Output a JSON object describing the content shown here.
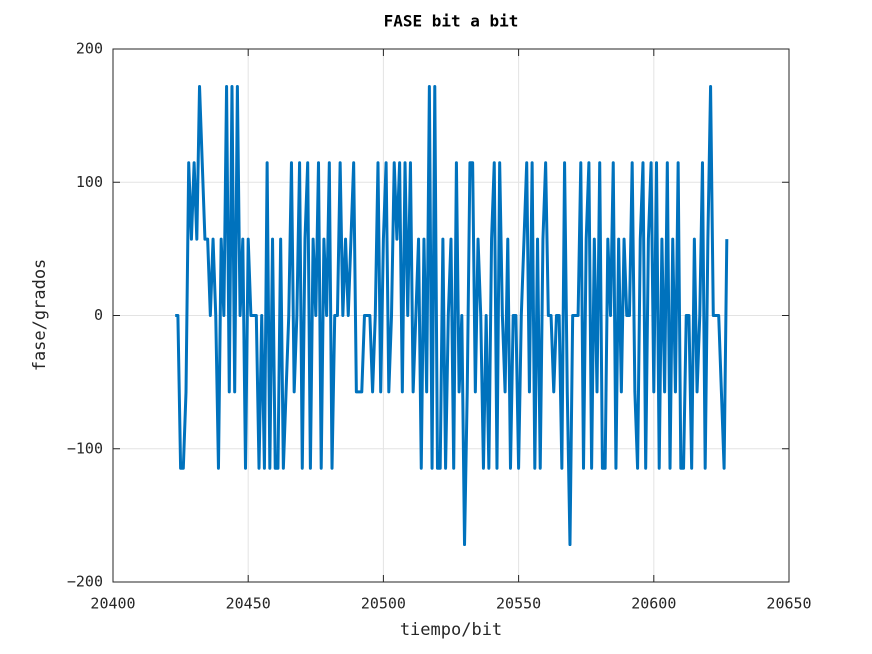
{
  "chart_data": {
    "type": "line",
    "title": "FASE bit a bit",
    "xlabel": "tiempo/bit",
    "ylabel": "fase/grados",
    "x": [
      20423,
      20424,
      20425,
      20426,
      20427,
      20428,
      20429,
      20430,
      20431,
      20432,
      20433,
      20434,
      20435,
      20436,
      20437,
      20438,
      20439,
      20440,
      20441,
      20442,
      20443,
      20444,
      20445,
      20446,
      20447,
      20448,
      20449,
      20450,
      20451,
      20452,
      20453,
      20454,
      20455,
      20456,
      20457,
      20458,
      20459,
      20460,
      20461,
      20462,
      20463,
      20464,
      20465,
      20466,
      20467,
      20468,
      20469,
      20470,
      20471,
      20472,
      20473,
      20474,
      20475,
      20476,
      20477,
      20478,
      20479,
      20480,
      20481,
      20482,
      20483,
      20484,
      20485,
      20486,
      20487,
      20488,
      20489,
      20490,
      20491,
      20492,
      20493,
      20494,
      20495,
      20496,
      20497,
      20498,
      20499,
      20500,
      20501,
      20502,
      20503,
      20504,
      20505,
      20506,
      20507,
      20508,
      20509,
      20510,
      20511,
      20512,
      20513,
      20514,
      20515,
      20516,
      20517,
      20518,
      20519,
      20520,
      20521,
      20522,
      20523,
      20524,
      20525,
      20526,
      20527,
      20528,
      20529,
      20530,
      20531,
      20532,
      20533,
      20534,
      20535,
      20536,
      20537,
      20538,
      20539,
      20540,
      20541,
      20542,
      20543,
      20544,
      20545,
      20546,
      20547,
      20548,
      20549,
      20550,
      20551,
      20552,
      20553,
      20554,
      20555,
      20556,
      20557,
      20558,
      20559,
      20560,
      20561,
      20562,
      20563,
      20564,
      20565,
      20566,
      20567,
      20568,
      20569,
      20570,
      20571,
      20572,
      20573,
      20574,
      20575,
      20576,
      20577,
      20578,
      20579,
      20580,
      20581,
      20582,
      20583,
      20584,
      20585,
      20586,
      20587,
      20588,
      20589,
      20590,
      20591,
      20592,
      20593,
      20594,
      20595,
      20596,
      20597,
      20598,
      20599,
      20600,
      20601,
      20602,
      20603,
      20604,
      20605,
      20606,
      20607,
      20608,
      20609,
      20610,
      20611,
      20612,
      20613,
      20614,
      20615,
      20616,
      20617,
      20618,
      20619,
      20620,
      20621,
      20622,
      20623,
      20624,
      20625,
      20626,
      20627
    ],
    "series": [
      {
        "name": "fase",
        "color": "#0072bd",
        "values": [
          0,
          0,
          -114.6,
          -114.6,
          -57.3,
          114.6,
          57.3,
          114.6,
          57.3,
          171.9,
          114.6,
          57.3,
          57.3,
          0,
          57.3,
          0,
          -114.6,
          57.3,
          0,
          171.9,
          -57.3,
          171.9,
          -57.3,
          171.9,
          0,
          57.3,
          -114.6,
          57.3,
          0,
          0,
          0,
          -114.6,
          0,
          -114.6,
          114.6,
          -114.6,
          57.3,
          -114.6,
          -114.6,
          57.3,
          -114.6,
          -57.3,
          0,
          114.6,
          -57.3,
          0,
          114.6,
          -114.6,
          57.3,
          114.6,
          -114.6,
          57.3,
          0,
          114.6,
          -114.6,
          57.3,
          0,
          114.6,
          -114.6,
          0,
          0,
          114.6,
          0,
          57.3,
          0,
          57.3,
          114.6,
          -57.3,
          -57.3,
          -57.3,
          0,
          0,
          0,
          -57.3,
          0,
          114.6,
          -57.3,
          57.3,
          114.6,
          -57.3,
          0,
          114.6,
          57.3,
          114.6,
          -57.3,
          114.6,
          0,
          114.6,
          -57.3,
          0,
          57.3,
          -114.6,
          57.3,
          -57.3,
          171.9,
          -114.6,
          171.9,
          -114.6,
          -114.6,
          57.3,
          -114.6,
          0,
          57.3,
          -114.6,
          114.6,
          -57.3,
          0,
          -171.9,
          -57.3,
          114.6,
          114.6,
          -57.3,
          57.3,
          0,
          -114.6,
          0,
          -114.6,
          57.3,
          114.6,
          -114.6,
          114.6,
          0,
          -57.3,
          57.3,
          -114.6,
          0,
          0,
          -114.6,
          0,
          57.3,
          114.6,
          -57.3,
          114.6,
          -114.6,
          57.3,
          -114.6,
          57.3,
          114.6,
          0,
          0,
          -57.3,
          0,
          0,
          -114.6,
          114.6,
          -57.3,
          -171.9,
          0,
          0,
          0,
          114.6,
          -114.6,
          57.3,
          114.6,
          -114.6,
          57.3,
          -57.3,
          114.6,
          -114.6,
          -114.6,
          57.3,
          0,
          114.6,
          -114.6,
          57.3,
          -57.3,
          57.3,
          0,
          0,
          114.6,
          -57.3,
          -114.6,
          57.3,
          114.6,
          -114.6,
          57.3,
          114.6,
          -57.3,
          114.6,
          -114.6,
          57.3,
          -57.3,
          114.6,
          -114.6,
          57.3,
          -57.3,
          114.6,
          -114.6,
          -114.6,
          0,
          0,
          -114.6,
          57.3,
          -57.3,
          0,
          114.6,
          -114.6,
          57.3,
          171.9,
          0,
          0,
          0,
          -57.3,
          -114.6,
          57.3
        ]
      }
    ],
    "xlim": [
      20400,
      20650
    ],
    "xticks": [
      20400,
      20450,
      20500,
      20550,
      20600,
      20650
    ],
    "ylim": [
      -200,
      200
    ],
    "yticks": [
      {
        "value": -200,
        "label": "−200"
      },
      {
        "value": -100,
        "label": "−100"
      },
      0,
      100,
      200
    ],
    "grid": true
  }
}
